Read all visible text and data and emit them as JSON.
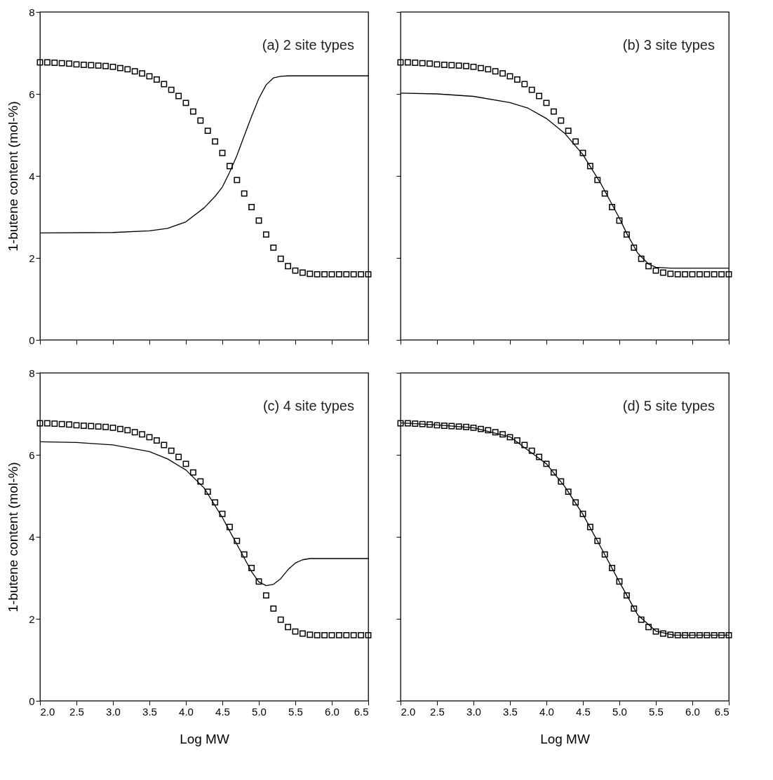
{
  "chart_data": [
    {
      "type": "line",
      "ylabel": "1-butene content (mol-%)",
      "annotations": [
        "(a) 2 site types"
      ],
      "xlim": [
        2.0,
        6.5
      ],
      "ylim": [
        0,
        8
      ],
      "xticks": [
        2,
        2.5,
        3,
        3.5,
        4,
        4.5,
        5,
        5.5,
        6,
        6.5
      ],
      "yticks": [
        0,
        2,
        4,
        6,
        8
      ],
      "tick_labels": "y",
      "series": [
        {
          "type": "line",
          "color": "#000000",
          "x": [
            2.0,
            3.0,
            3.5,
            3.75,
            4.0,
            4.25,
            4.4,
            4.5,
            4.6,
            4.7,
            4.8,
            4.9,
            5.0,
            5.1,
            5.2,
            5.3,
            5.4,
            6.5
          ],
          "values": [
            2.61,
            2.62,
            2.66,
            2.72,
            2.88,
            3.22,
            3.5,
            3.73,
            4.09,
            4.5,
            4.98,
            5.45,
            5.89,
            6.22,
            6.39,
            6.43,
            6.44,
            6.44
          ]
        },
        {
          "type": "scatter",
          "color": "#000000",
          "marker": "square",
          "x": [
            2.0,
            2.1,
            2.2,
            2.3,
            2.4,
            2.5,
            2.6,
            2.7,
            2.8,
            2.9,
            3.0,
            3.1,
            3.2,
            3.3,
            3.4,
            3.5,
            3.6,
            3.7,
            3.8,
            3.9,
            4.0,
            4.1,
            4.2,
            4.3,
            4.4,
            4.5,
            4.6,
            4.7,
            4.8,
            4.9,
            5.0,
            5.1,
            5.2,
            5.3,
            5.4,
            5.5,
            5.6,
            5.7,
            5.8,
            5.9,
            6.0,
            6.1,
            6.2,
            6.3,
            6.4,
            6.5
          ],
          "values": [
            6.77,
            6.77,
            6.76,
            6.75,
            6.74,
            6.72,
            6.71,
            6.7,
            6.69,
            6.68,
            6.66,
            6.63,
            6.6,
            6.55,
            6.5,
            6.43,
            6.35,
            6.24,
            6.1,
            5.95,
            5.78,
            5.57,
            5.35,
            5.1,
            4.84,
            4.56,
            4.24,
            3.9,
            3.57,
            3.24,
            2.91,
            2.57,
            2.25,
            1.98,
            1.8,
            1.69,
            1.64,
            1.61,
            1.6,
            1.6,
            1.6,
            1.6,
            1.6,
            1.6,
            1.6,
            1.6
          ]
        }
      ]
    },
    {
      "type": "line",
      "annotations": [
        "(b) 3 site types"
      ],
      "xlim": [
        2.0,
        6.5
      ],
      "ylim": [
        0,
        8
      ],
      "xticks": [
        2,
        2.5,
        3,
        3.5,
        4,
        4.5,
        5,
        5.5,
        6,
        6.5
      ],
      "yticks": [
        0,
        2,
        4,
        6,
        8
      ],
      "tick_labels": false,
      "series": [
        {
          "type": "line",
          "color": "#000000",
          "x": [
            2.0,
            2.5,
            3.0,
            3.5,
            3.75,
            4.0,
            4.25,
            4.5,
            4.75,
            5.0,
            5.1,
            5.25,
            5.4,
            5.5,
            5.7,
            6.5
          ],
          "values": [
            6.02,
            6.0,
            5.94,
            5.79,
            5.65,
            5.4,
            5.04,
            4.52,
            3.8,
            2.97,
            2.6,
            2.12,
            1.85,
            1.77,
            1.75,
            1.75
          ]
        },
        {
          "type": "scatter",
          "color": "#000000",
          "marker": "square",
          "x": [
            2.0,
            2.1,
            2.2,
            2.3,
            2.4,
            2.5,
            2.6,
            2.7,
            2.8,
            2.9,
            3.0,
            3.1,
            3.2,
            3.3,
            3.4,
            3.5,
            3.6,
            3.7,
            3.8,
            3.9,
            4.0,
            4.1,
            4.2,
            4.3,
            4.4,
            4.5,
            4.6,
            4.7,
            4.8,
            4.9,
            5.0,
            5.1,
            5.2,
            5.3,
            5.4,
            5.5,
            5.6,
            5.7,
            5.8,
            5.9,
            6.0,
            6.1,
            6.2,
            6.3,
            6.4,
            6.5
          ],
          "values": [
            6.77,
            6.77,
            6.76,
            6.75,
            6.74,
            6.72,
            6.71,
            6.7,
            6.69,
            6.68,
            6.66,
            6.63,
            6.6,
            6.55,
            6.5,
            6.43,
            6.35,
            6.24,
            6.1,
            5.95,
            5.78,
            5.57,
            5.35,
            5.1,
            4.84,
            4.56,
            4.24,
            3.9,
            3.57,
            3.24,
            2.91,
            2.57,
            2.25,
            1.98,
            1.8,
            1.69,
            1.64,
            1.61,
            1.6,
            1.6,
            1.6,
            1.6,
            1.6,
            1.6,
            1.6,
            1.6
          ]
        }
      ]
    },
    {
      "type": "line",
      "xlabel": "Log MW",
      "ylabel": "1-butene content (mol-%)",
      "annotations": [
        "(c) 4 site types"
      ],
      "xlim": [
        2.0,
        6.5
      ],
      "ylim": [
        0,
        8
      ],
      "xticks": [
        {
          "value": 2.0,
          "label": "2.0"
        },
        {
          "value": 2.5,
          "label": "2.5"
        },
        {
          "value": 3.0,
          "label": "3.0"
        },
        {
          "value": 3.5,
          "label": "3.5"
        },
        {
          "value": 4.0,
          "label": "4.0"
        },
        {
          "value": 4.5,
          "label": "4.5"
        },
        {
          "value": 5.0,
          "label": "5.0"
        },
        {
          "value": 5.5,
          "label": "5.5"
        },
        {
          "value": 6.0,
          "label": "6.0"
        },
        {
          "value": 6.5,
          "label": "6.5"
        }
      ],
      "yticks": [
        0,
        2,
        4,
        6,
        8
      ],
      "series": [
        {
          "type": "line",
          "color": "#000000",
          "x": [
            2.0,
            2.5,
            3.0,
            3.5,
            3.75,
            4.0,
            4.25,
            4.5,
            4.75,
            4.9,
            5.0,
            5.1,
            5.2,
            5.3,
            5.4,
            5.5,
            5.6,
            5.7,
            6.5
          ],
          "values": [
            6.32,
            6.3,
            6.24,
            6.08,
            5.9,
            5.63,
            5.19,
            4.47,
            3.65,
            3.15,
            2.9,
            2.81,
            2.84,
            2.98,
            3.2,
            3.36,
            3.44,
            3.47,
            3.47
          ]
        },
        {
          "type": "scatter",
          "color": "#000000",
          "marker": "square",
          "x": [
            2.0,
            2.1,
            2.2,
            2.3,
            2.4,
            2.5,
            2.6,
            2.7,
            2.8,
            2.9,
            3.0,
            3.1,
            3.2,
            3.3,
            3.4,
            3.5,
            3.6,
            3.7,
            3.8,
            3.9,
            4.0,
            4.1,
            4.2,
            4.3,
            4.4,
            4.5,
            4.6,
            4.7,
            4.8,
            4.9,
            5.0,
            5.1,
            5.2,
            5.3,
            5.4,
            5.5,
            5.6,
            5.7,
            5.8,
            5.9,
            6.0,
            6.1,
            6.2,
            6.3,
            6.4,
            6.5
          ],
          "values": [
            6.77,
            6.77,
            6.76,
            6.75,
            6.74,
            6.72,
            6.71,
            6.7,
            6.69,
            6.68,
            6.66,
            6.63,
            6.6,
            6.55,
            6.5,
            6.43,
            6.35,
            6.24,
            6.1,
            5.95,
            5.78,
            5.57,
            5.35,
            5.1,
            4.84,
            4.56,
            4.24,
            3.9,
            3.57,
            3.24,
            2.91,
            2.57,
            2.25,
            1.98,
            1.8,
            1.69,
            1.64,
            1.61,
            1.6,
            1.6,
            1.6,
            1.6,
            1.6,
            1.6,
            1.6,
            1.6
          ]
        }
      ]
    },
    {
      "type": "line",
      "xlabel": "Log MW",
      "annotations": [
        "(d) 5 site types"
      ],
      "xlim": [
        2.0,
        6.5
      ],
      "ylim": [
        0,
        8
      ],
      "xticks": [
        {
          "value": 2.0,
          "label": "2.0"
        },
        {
          "value": 2.5,
          "label": "2.5"
        },
        {
          "value": 3.0,
          "label": "3.0"
        },
        {
          "value": 3.5,
          "label": "3.5"
        },
        {
          "value": 4.0,
          "label": "4.0"
        },
        {
          "value": 4.5,
          "label": "4.5"
        },
        {
          "value": 5.0,
          "label": "5.0"
        },
        {
          "value": 5.5,
          "label": "5.5"
        },
        {
          "value": 6.0,
          "label": "6.0"
        },
        {
          "value": 6.5,
          "label": "6.5"
        }
      ],
      "yticks": [
        0,
        2,
        4,
        6,
        8
      ],
      "tick_labels": "x",
      "series": [
        {
          "type": "line",
          "color": "#000000",
          "x": [
            2.0,
            2.5,
            3.0,
            3.5,
            4.0,
            4.25,
            4.5,
            4.75,
            5.0,
            5.25,
            5.5,
            5.75,
            6.5
          ],
          "values": [
            6.78,
            6.73,
            6.66,
            6.44,
            5.78,
            5.23,
            4.55,
            3.73,
            2.9,
            2.1,
            1.7,
            1.6,
            1.6
          ]
        },
        {
          "type": "scatter",
          "color": "#000000",
          "marker": "square",
          "x": [
            2.0,
            2.1,
            2.2,
            2.3,
            2.4,
            2.5,
            2.6,
            2.7,
            2.8,
            2.9,
            3.0,
            3.1,
            3.2,
            3.3,
            3.4,
            3.5,
            3.6,
            3.7,
            3.8,
            3.9,
            4.0,
            4.1,
            4.2,
            4.3,
            4.4,
            4.5,
            4.6,
            4.7,
            4.8,
            4.9,
            5.0,
            5.1,
            5.2,
            5.3,
            5.4,
            5.5,
            5.6,
            5.7,
            5.8,
            5.9,
            6.0,
            6.1,
            6.2,
            6.3,
            6.4,
            6.5
          ],
          "values": [
            6.77,
            6.77,
            6.76,
            6.75,
            6.74,
            6.72,
            6.71,
            6.7,
            6.69,
            6.68,
            6.66,
            6.63,
            6.6,
            6.55,
            6.5,
            6.43,
            6.35,
            6.24,
            6.1,
            5.95,
            5.78,
            5.57,
            5.35,
            5.1,
            4.84,
            4.56,
            4.24,
            3.9,
            3.57,
            3.24,
            2.91,
            2.57,
            2.25,
            1.98,
            1.8,
            1.69,
            1.64,
            1.61,
            1.6,
            1.6,
            1.6,
            1.6,
            1.6,
            1.6,
            1.6,
            1.6
          ]
        }
      ]
    }
  ]
}
